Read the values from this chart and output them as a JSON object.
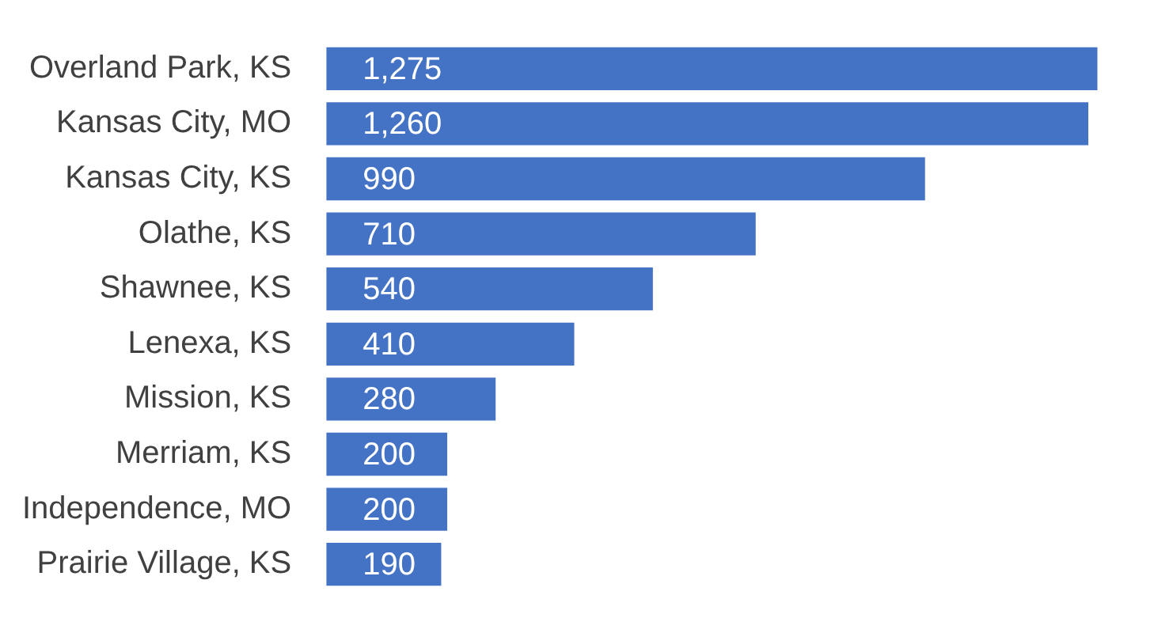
{
  "chart_data": {
    "type": "bar",
    "orientation": "horizontal",
    "categories": [
      "Overland Park, KS",
      "Kansas City, MO",
      "Kansas City, KS",
      "Olathe, KS",
      "Shawnee, KS",
      "Lenexa, KS",
      "Mission, KS",
      "Merriam, KS",
      "Independence, MO",
      "Prairie Village, KS"
    ],
    "values": [
      1275,
      1260,
      990,
      710,
      540,
      410,
      280,
      200,
      200,
      190
    ],
    "color": "#4472c4",
    "data_labels": true,
    "value_labels": [
      "1,275",
      "1,260",
      "990",
      "710",
      "540",
      "410",
      "280",
      "200",
      "200",
      "190"
    ],
    "legend": false,
    "tick_labels": "y"
  }
}
